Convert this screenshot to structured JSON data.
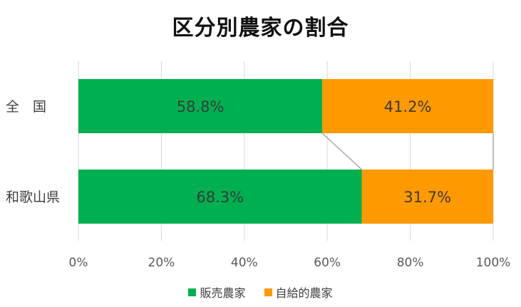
{
  "chart_data": {
    "type": "bar",
    "orientation": "horizontal",
    "stacked": "percent",
    "title": "区分別農家の割合",
    "categories": [
      "全　国",
      "和歌山県"
    ],
    "series": [
      {
        "name": "販売農家",
        "values": [
          58.8,
          68.3
        ],
        "labels": [
          "58.8%",
          "68.3%"
        ],
        "color": "#00b050"
      },
      {
        "name": "自給的農家",
        "values": [
          41.2,
          31.7
        ],
        "labels": [
          "41.2%",
          "31.7%"
        ],
        "color": "#ff9900"
      }
    ],
    "xlim": [
      0,
      100
    ],
    "xticks": [
      0,
      20,
      40,
      60,
      80,
      100
    ],
    "xtick_labels": [
      "0%",
      "20%",
      "40%",
      "60%",
      "80%",
      "100%"
    ],
    "grid": "vertical",
    "series_lines": true,
    "legend": "bottom"
  }
}
